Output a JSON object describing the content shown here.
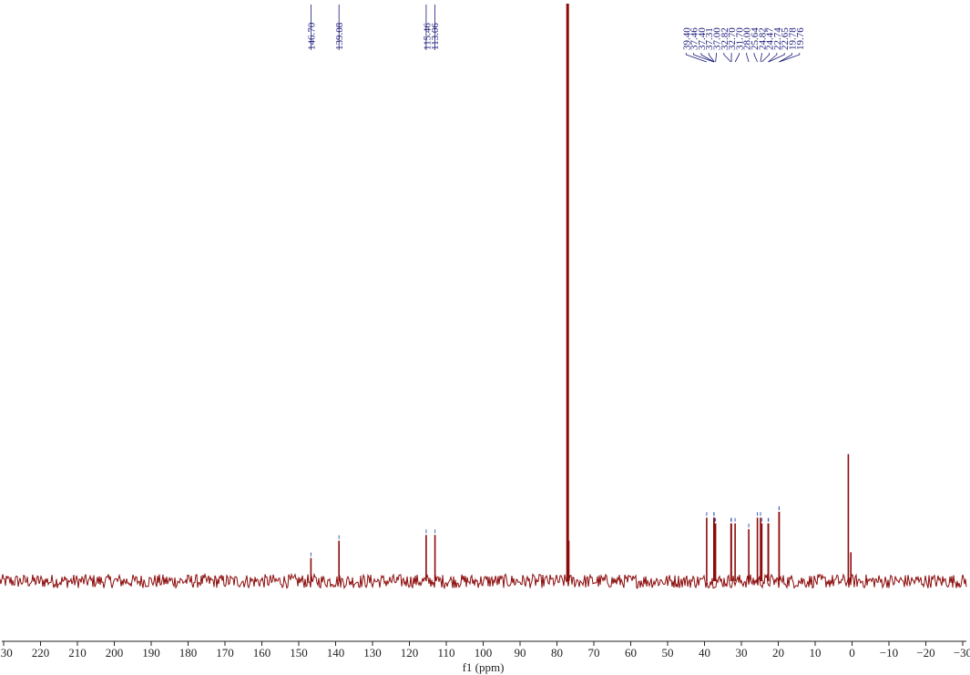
{
  "chart_data": {
    "type": "line",
    "title": "",
    "xlabel": "f1 (ppm)",
    "ylabel": "",
    "xlim": [
      231,
      -31
    ],
    "x_reversed": true,
    "grid": false,
    "ticks": [
      230,
      220,
      210,
      200,
      190,
      180,
      170,
      160,
      150,
      140,
      130,
      120,
      110,
      100,
      90,
      80,
      70,
      60,
      50,
      40,
      30,
      20,
      10,
      0,
      -10,
      -20,
      -30
    ],
    "tick_labels": [
      "230",
      "220",
      "210",
      "200",
      "190",
      "180",
      "170",
      "160",
      "150",
      "140",
      "130",
      "120",
      "110",
      "100",
      "90",
      "80",
      "70",
      "60",
      "50",
      "40",
      "30",
      "20",
      "10",
      "0",
      "−10",
      "−20",
      "−30"
    ],
    "peak_label_groups": [
      {
        "labels": [
          "146.70"
        ],
        "x": [
          146.7
        ]
      },
      {
        "labels": [
          "139.08"
        ],
        "x": [
          139.08
        ]
      },
      {
        "labels": [
          "115.46",
          "113.06"
        ],
        "x": [
          115.46,
          113.06
        ]
      },
      {
        "labels": [
          "39.40",
          "37.46",
          "37.40",
          "37.31",
          "37.00",
          "32.82",
          "32.70",
          "31.70",
          "28.00",
          "25.64",
          "24.82",
          "24.47",
          "22.74",
          "22.65",
          "19.78",
          "19.76"
        ],
        "x": [
          39.4,
          37.46,
          37.4,
          37.31,
          37.0,
          32.82,
          32.7,
          31.7,
          28.0,
          25.64,
          24.82,
          24.47,
          22.74,
          22.65,
          19.78,
          19.76
        ]
      }
    ],
    "series": [
      {
        "color": "#8b0a0a",
        "baseline": 0,
        "noise_amplitude": 0.012,
        "peaks": [
          {
            "x": 146.7,
            "y": 0.04
          },
          {
            "x": 139.08,
            "y": 0.07
          },
          {
            "x": 115.46,
            "y": 0.08
          },
          {
            "x": 113.06,
            "y": 0.08
          },
          {
            "x": 77.2,
            "y": 1.0
          },
          {
            "x": 77.0,
            "y": 1.0
          },
          {
            "x": 76.8,
            "y": 0.07
          },
          {
            "x": 39.4,
            "y": 0.11
          },
          {
            "x": 37.46,
            "y": 0.11
          },
          {
            "x": 37.4,
            "y": 0.11
          },
          {
            "x": 37.31,
            "y": 0.1
          },
          {
            "x": 37.0,
            "y": 0.1
          },
          {
            "x": 32.82,
            "y": 0.1
          },
          {
            "x": 32.7,
            "y": 0.1
          },
          {
            "x": 31.7,
            "y": 0.1
          },
          {
            "x": 28.0,
            "y": 0.09
          },
          {
            "x": 25.64,
            "y": 0.11
          },
          {
            "x": 24.82,
            "y": 0.11
          },
          {
            "x": 24.47,
            "y": 0.1
          },
          {
            "x": 22.74,
            "y": 0.1
          },
          {
            "x": 22.65,
            "y": 0.1
          },
          {
            "x": 19.78,
            "y": 0.12
          },
          {
            "x": 19.76,
            "y": 0.12
          },
          {
            "x": 1.0,
            "y": 0.22
          },
          {
            "x": 0.3,
            "y": 0.05
          }
        ]
      }
    ],
    "colors": {
      "spectrum": "#8b0a0a",
      "labels": "#1a1a7a",
      "axis": "#222222"
    }
  }
}
